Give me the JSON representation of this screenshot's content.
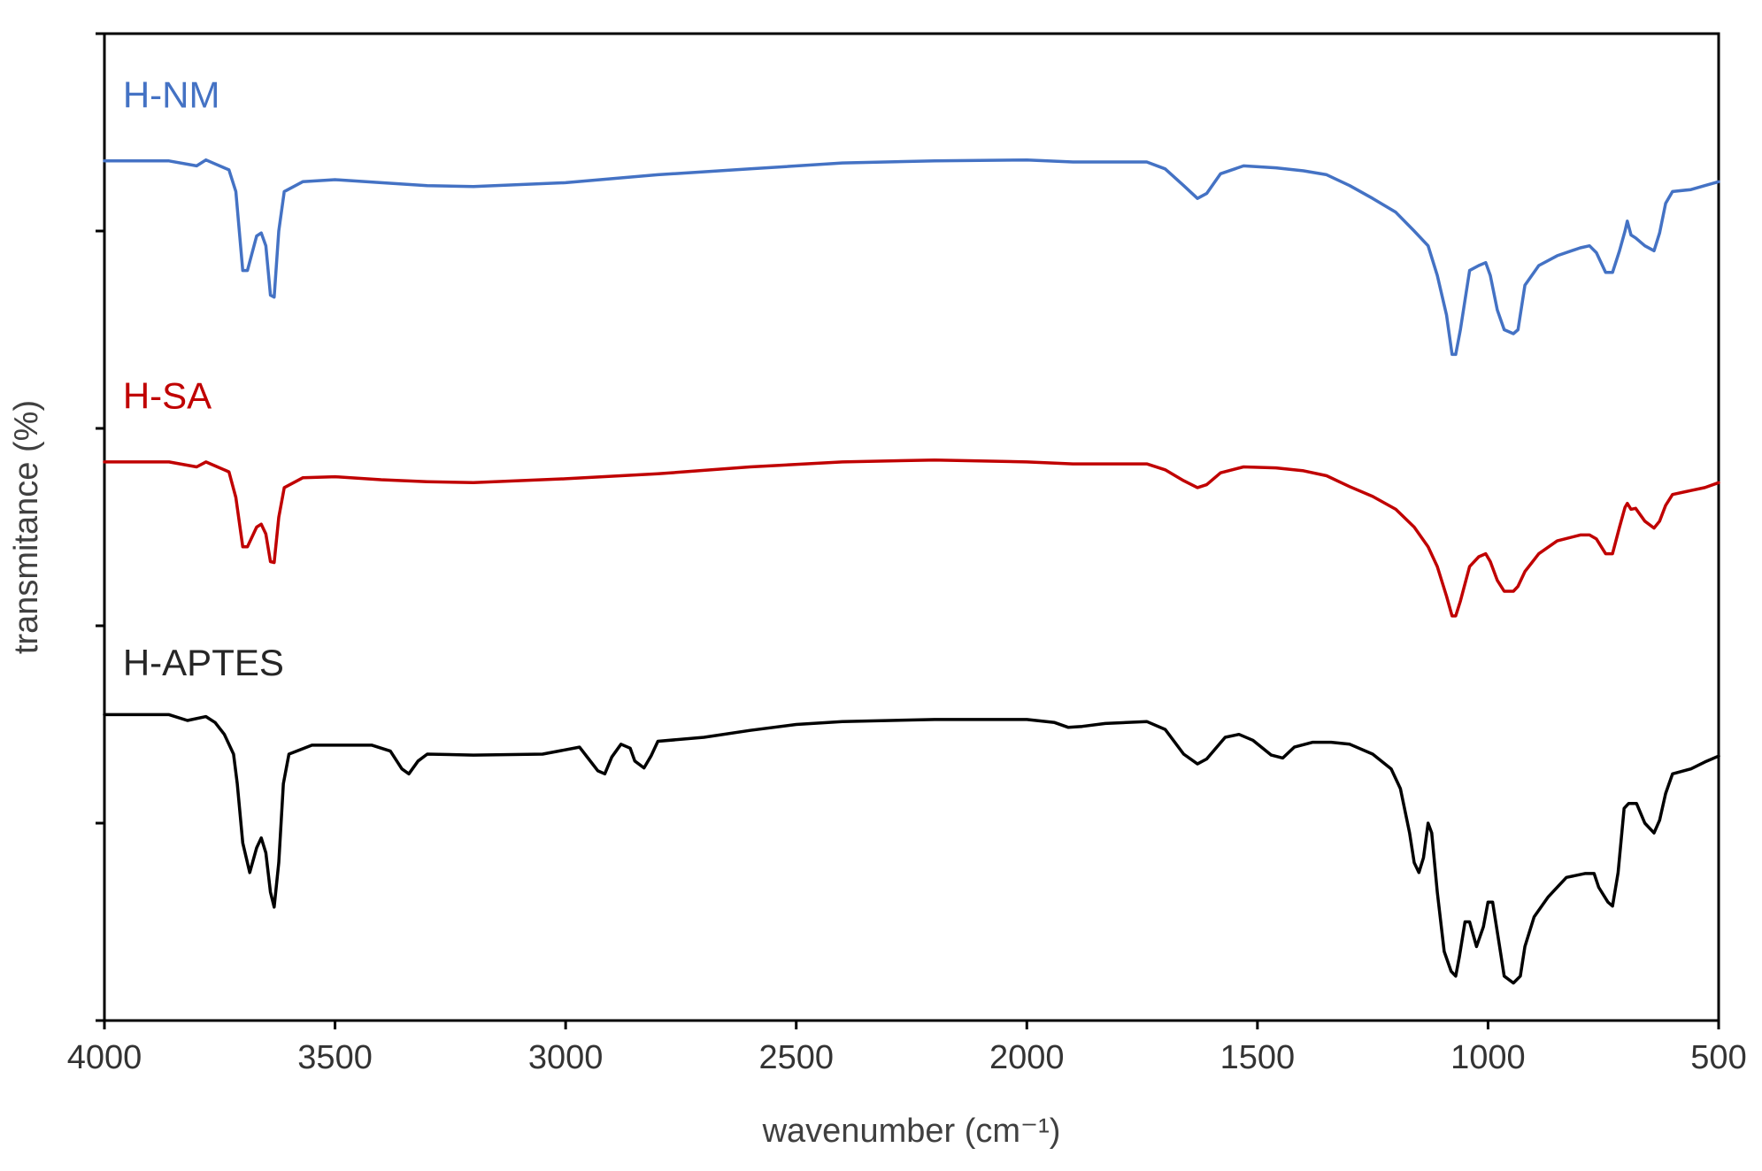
{
  "chart_data": {
    "type": "line",
    "title": "",
    "xlabel": "wavenumber (cm⁻¹)",
    "ylabel": "transmitance (%)",
    "xlim": [
      4000,
      500
    ],
    "x_reversed": true,
    "x_ticks": [
      4000,
      3500,
      3000,
      2500,
      2000,
      1500,
      1000,
      500
    ],
    "x_tick_labels": [
      "4000",
      "3500",
      "3000",
      "2500",
      "2000",
      "1500",
      "1000",
      "500"
    ],
    "ylim": [
      0,
      100
    ],
    "y_ticks": [
      0,
      20,
      40,
      60,
      80,
      100
    ],
    "y_tick_labels": [],
    "grid": false,
    "legend": "none",
    "series": [
      {
        "name": "H-NM",
        "color": "#4472C4",
        "points": [
          [
            4000,
            87.1
          ],
          [
            3860,
            87.1
          ],
          [
            3800,
            86.6
          ],
          [
            3780,
            87.2
          ],
          [
            3760,
            86.8
          ],
          [
            3730,
            86.2
          ],
          [
            3715,
            84.0
          ],
          [
            3700,
            76.0
          ],
          [
            3690,
            76.0
          ],
          [
            3670,
            79.5
          ],
          [
            3660,
            79.8
          ],
          [
            3650,
            78.5
          ],
          [
            3640,
            73.5
          ],
          [
            3632,
            73.3
          ],
          [
            3622,
            80.0
          ],
          [
            3610,
            84.0
          ],
          [
            3570,
            85.0
          ],
          [
            3500,
            85.2
          ],
          [
            3400,
            84.9
          ],
          [
            3300,
            84.6
          ],
          [
            3200,
            84.5
          ],
          [
            3000,
            84.9
          ],
          [
            2800,
            85.7
          ],
          [
            2600,
            86.3
          ],
          [
            2400,
            86.9
          ],
          [
            2200,
            87.1
          ],
          [
            2000,
            87.2
          ],
          [
            1900,
            87.0
          ],
          [
            1800,
            87.0
          ],
          [
            1740,
            87.0
          ],
          [
            1700,
            86.3
          ],
          [
            1660,
            84.6
          ],
          [
            1630,
            83.3
          ],
          [
            1610,
            83.8
          ],
          [
            1580,
            85.8
          ],
          [
            1530,
            86.6
          ],
          [
            1460,
            86.4
          ],
          [
            1400,
            86.1
          ],
          [
            1350,
            85.7
          ],
          [
            1300,
            84.6
          ],
          [
            1250,
            83.3
          ],
          [
            1200,
            81.9
          ],
          [
            1160,
            80.0
          ],
          [
            1130,
            78.5
          ],
          [
            1110,
            75.5
          ],
          [
            1090,
            71.5
          ],
          [
            1078,
            67.5
          ],
          [
            1070,
            67.5
          ],
          [
            1060,
            70.0
          ],
          [
            1040,
            76.0
          ],
          [
            1020,
            76.5
          ],
          [
            1005,
            76.8
          ],
          [
            995,
            75.5
          ],
          [
            980,
            72.0
          ],
          [
            965,
            70.0
          ],
          [
            945,
            69.6
          ],
          [
            935,
            70.0
          ],
          [
            920,
            74.5
          ],
          [
            890,
            76.5
          ],
          [
            850,
            77.5
          ],
          [
            800,
            78.3
          ],
          [
            780,
            78.5
          ],
          [
            765,
            77.8
          ],
          [
            745,
            75.8
          ],
          [
            730,
            75.8
          ],
          [
            715,
            78.0
          ],
          [
            703,
            80.0
          ],
          [
            698,
            81.0
          ],
          [
            690,
            79.6
          ],
          [
            680,
            79.3
          ],
          [
            660,
            78.5
          ],
          [
            640,
            78.0
          ],
          [
            628,
            79.8
          ],
          [
            615,
            82.8
          ],
          [
            600,
            84.0
          ],
          [
            560,
            84.2
          ],
          [
            530,
            84.6
          ],
          [
            500,
            85.0
          ]
        ]
      },
      {
        "name": "H-SA",
        "color": "#C00000",
        "points": [
          [
            4000,
            56.6
          ],
          [
            3860,
            56.6
          ],
          [
            3800,
            56.1
          ],
          [
            3780,
            56.6
          ],
          [
            3760,
            56.2
          ],
          [
            3730,
            55.6
          ],
          [
            3715,
            53.0
          ],
          [
            3700,
            48.0
          ],
          [
            3690,
            48.0
          ],
          [
            3670,
            50.0
          ],
          [
            3660,
            50.3
          ],
          [
            3650,
            49.3
          ],
          [
            3640,
            46.5
          ],
          [
            3632,
            46.4
          ],
          [
            3622,
            51.0
          ],
          [
            3610,
            54.0
          ],
          [
            3570,
            55.0
          ],
          [
            3500,
            55.1
          ],
          [
            3400,
            54.8
          ],
          [
            3300,
            54.6
          ],
          [
            3200,
            54.5
          ],
          [
            3000,
            54.9
          ],
          [
            2800,
            55.4
          ],
          [
            2600,
            56.1
          ],
          [
            2400,
            56.6
          ],
          [
            2200,
            56.8
          ],
          [
            2000,
            56.6
          ],
          [
            1900,
            56.4
          ],
          [
            1800,
            56.4
          ],
          [
            1740,
            56.4
          ],
          [
            1700,
            55.8
          ],
          [
            1660,
            54.7
          ],
          [
            1630,
            54.0
          ],
          [
            1610,
            54.3
          ],
          [
            1580,
            55.5
          ],
          [
            1530,
            56.1
          ],
          [
            1460,
            56.0
          ],
          [
            1400,
            55.7
          ],
          [
            1350,
            55.2
          ],
          [
            1300,
            54.1
          ],
          [
            1250,
            53.1
          ],
          [
            1200,
            51.8
          ],
          [
            1160,
            50.0
          ],
          [
            1130,
            48.0
          ],
          [
            1110,
            46.0
          ],
          [
            1090,
            43.0
          ],
          [
            1078,
            41.0
          ],
          [
            1070,
            41.0
          ],
          [
            1060,
            42.5
          ],
          [
            1040,
            46.0
          ],
          [
            1020,
            47.0
          ],
          [
            1005,
            47.3
          ],
          [
            995,
            46.5
          ],
          [
            980,
            44.6
          ],
          [
            965,
            43.5
          ],
          [
            945,
            43.5
          ],
          [
            935,
            44.0
          ],
          [
            920,
            45.5
          ],
          [
            890,
            47.3
          ],
          [
            850,
            48.6
          ],
          [
            800,
            49.2
          ],
          [
            780,
            49.2
          ],
          [
            765,
            48.8
          ],
          [
            745,
            47.3
          ],
          [
            730,
            47.3
          ],
          [
            715,
            50.0
          ],
          [
            703,
            52.0
          ],
          [
            698,
            52.4
          ],
          [
            690,
            51.8
          ],
          [
            680,
            51.9
          ],
          [
            660,
            50.6
          ],
          [
            640,
            49.9
          ],
          [
            628,
            50.6
          ],
          [
            615,
            52.2
          ],
          [
            600,
            53.3
          ],
          [
            560,
            53.7
          ],
          [
            530,
            54.0
          ],
          [
            500,
            54.5
          ]
        ]
      },
      {
        "name": "H-APTES",
        "color": "#000000",
        "points": [
          [
            4000,
            31.0
          ],
          [
            3860,
            31.0
          ],
          [
            3820,
            30.4
          ],
          [
            3780,
            30.8
          ],
          [
            3760,
            30.2
          ],
          [
            3740,
            29.0
          ],
          [
            3720,
            27.0
          ],
          [
            3712,
            24.0
          ],
          [
            3700,
            18.0
          ],
          [
            3685,
            15.0
          ],
          [
            3670,
            17.5
          ],
          [
            3660,
            18.5
          ],
          [
            3650,
            17.0
          ],
          [
            3640,
            13.0
          ],
          [
            3632,
            11.5
          ],
          [
            3622,
            16.0
          ],
          [
            3612,
            24.0
          ],
          [
            3600,
            27.0
          ],
          [
            3550,
            27.9
          ],
          [
            3500,
            27.9
          ],
          [
            3420,
            27.9
          ],
          [
            3380,
            27.3
          ],
          [
            3355,
            25.5
          ],
          [
            3340,
            25.0
          ],
          [
            3320,
            26.3
          ],
          [
            3300,
            27.0
          ],
          [
            3200,
            26.9
          ],
          [
            3050,
            27.0
          ],
          [
            2970,
            27.7
          ],
          [
            2950,
            26.5
          ],
          [
            2930,
            25.3
          ],
          [
            2915,
            25.0
          ],
          [
            2900,
            26.7
          ],
          [
            2880,
            28.0
          ],
          [
            2860,
            27.6
          ],
          [
            2850,
            26.3
          ],
          [
            2830,
            25.6
          ],
          [
            2815,
            26.8
          ],
          [
            2800,
            28.3
          ],
          [
            2700,
            28.7
          ],
          [
            2600,
            29.4
          ],
          [
            2500,
            30.0
          ],
          [
            2400,
            30.3
          ],
          [
            2200,
            30.5
          ],
          [
            2000,
            30.5
          ],
          [
            1940,
            30.2
          ],
          [
            1910,
            29.7
          ],
          [
            1880,
            29.8
          ],
          [
            1830,
            30.1
          ],
          [
            1740,
            30.3
          ],
          [
            1700,
            29.5
          ],
          [
            1660,
            27.0
          ],
          [
            1630,
            26.0
          ],
          [
            1610,
            26.5
          ],
          [
            1570,
            28.7
          ],
          [
            1540,
            29.0
          ],
          [
            1510,
            28.4
          ],
          [
            1470,
            26.9
          ],
          [
            1445,
            26.6
          ],
          [
            1420,
            27.7
          ],
          [
            1380,
            28.2
          ],
          [
            1340,
            28.2
          ],
          [
            1300,
            28.0
          ],
          [
            1250,
            27.0
          ],
          [
            1210,
            25.5
          ],
          [
            1190,
            23.5
          ],
          [
            1170,
            19.0
          ],
          [
            1160,
            16.0
          ],
          [
            1150,
            15.0
          ],
          [
            1140,
            16.5
          ],
          [
            1130,
            20.0
          ],
          [
            1122,
            19.0
          ],
          [
            1110,
            13.0
          ],
          [
            1095,
            7.0
          ],
          [
            1080,
            5.0
          ],
          [
            1070,
            4.5
          ],
          [
            1062,
            6.5
          ],
          [
            1050,
            10.0
          ],
          [
            1040,
            10.0
          ],
          [
            1025,
            7.5
          ],
          [
            1010,
            9.5
          ],
          [
            1000,
            12.0
          ],
          [
            990,
            12.0
          ],
          [
            975,
            7.5
          ],
          [
            965,
            4.5
          ],
          [
            945,
            3.8
          ],
          [
            930,
            4.5
          ],
          [
            920,
            7.5
          ],
          [
            900,
            10.5
          ],
          [
            870,
            12.5
          ],
          [
            830,
            14.5
          ],
          [
            790,
            14.9
          ],
          [
            770,
            14.9
          ],
          [
            760,
            13.5
          ],
          [
            740,
            12.0
          ],
          [
            730,
            11.6
          ],
          [
            718,
            15.0
          ],
          [
            705,
            21.5
          ],
          [
            695,
            22.0
          ],
          [
            678,
            22.0
          ],
          [
            660,
            20.0
          ],
          [
            640,
            19.0
          ],
          [
            628,
            20.3
          ],
          [
            615,
            23.0
          ],
          [
            600,
            25.0
          ],
          [
            560,
            25.5
          ],
          [
            530,
            26.2
          ],
          [
            500,
            26.8
          ]
        ]
      }
    ],
    "annotations": [
      {
        "text": "H-NM",
        "x": 3960,
        "y": 92.5,
        "color": "#4472C4"
      },
      {
        "text": "H-SA",
        "x": 3960,
        "y": 62.0,
        "color": "#C00000"
      },
      {
        "text": "H-APTES",
        "x": 3960,
        "y": 35.0,
        "color": "#262626"
      }
    ]
  }
}
